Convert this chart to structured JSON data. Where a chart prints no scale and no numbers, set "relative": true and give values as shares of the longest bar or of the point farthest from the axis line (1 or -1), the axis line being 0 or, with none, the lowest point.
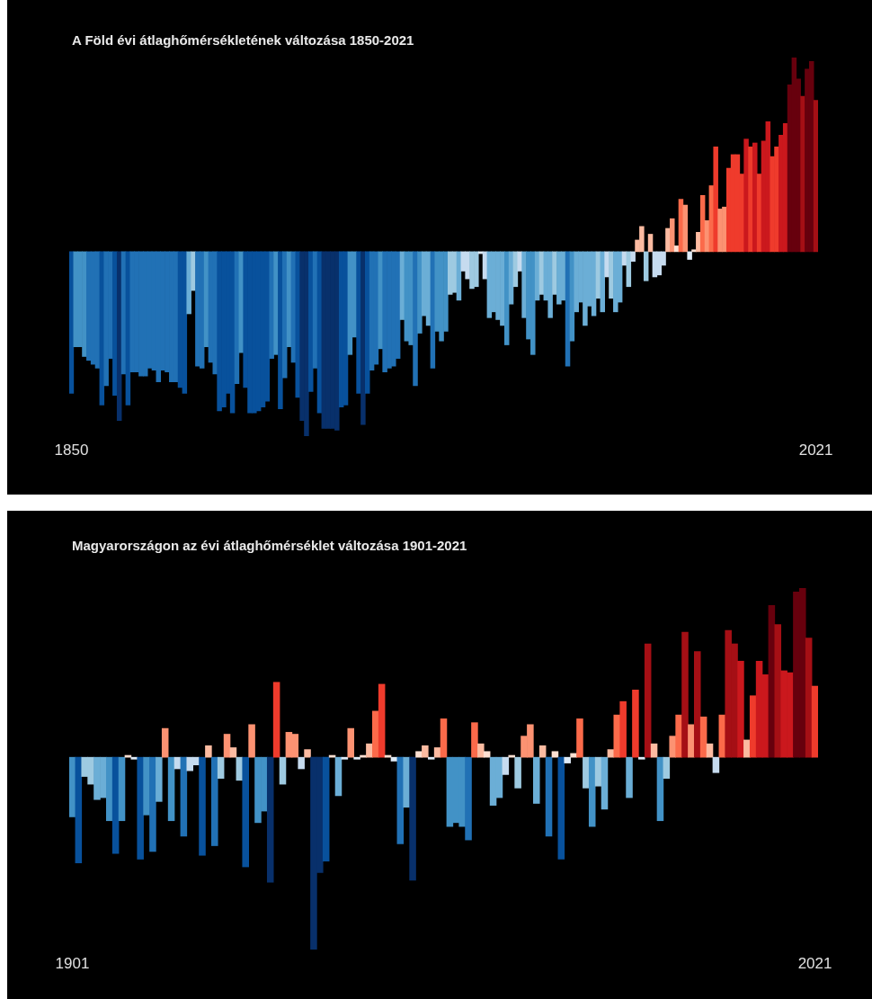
{
  "chart_data": [
    {
      "type": "bar",
      "title": "A Föld évi átlaghőmérsékletének változása 1850-2021",
      "relative": true,
      "categories": [
        "1850",
        null,
        null,
        null,
        null,
        null,
        null,
        null,
        null,
        null,
        null,
        null,
        null,
        null,
        null,
        null,
        null,
        null,
        null,
        null,
        null,
        null,
        null,
        null,
        null,
        null,
        null,
        null,
        null,
        null,
        null,
        null,
        null,
        null,
        null,
        null,
        null,
        null,
        null,
        null,
        null,
        null,
        null,
        null,
        null,
        null,
        null,
        null,
        null,
        null,
        null,
        null,
        null,
        null,
        null,
        null,
        null,
        null,
        null,
        null,
        null,
        null,
        null,
        null,
        null,
        null,
        null,
        null,
        null,
        null,
        null,
        null,
        null,
        null,
        null,
        null,
        null,
        null,
        null,
        null,
        null,
        null,
        null,
        null,
        null,
        null,
        null,
        null,
        null,
        null,
        null,
        null,
        null,
        null,
        null,
        null,
        null,
        null,
        null,
        null,
        null,
        null,
        null,
        null,
        null,
        null,
        null,
        null,
        null,
        null,
        null,
        null,
        null,
        null,
        null,
        null,
        null,
        null,
        null,
        null,
        null,
        null,
        null,
        null,
        null,
        null,
        null,
        null,
        null,
        null,
        null,
        null,
        null,
        null,
        null,
        null,
        null,
        null,
        null,
        null,
        null,
        null,
        null,
        null,
        null,
        null,
        null,
        null,
        null,
        null,
        null,
        null,
        null,
        null,
        null,
        null,
        null,
        null,
        null,
        null,
        null,
        null,
        null,
        null,
        null,
        null,
        null,
        null,
        null,
        null,
        null,
        "2021"
      ],
      "values": [
        -0.73,
        -0.49,
        -0.49,
        -0.54,
        -0.56,
        -0.58,
        -0.6,
        -0.79,
        -0.69,
        -0.55,
        -0.74,
        -0.87,
        -0.63,
        -0.79,
        -0.62,
        -0.62,
        -0.64,
        -0.64,
        -0.6,
        -0.61,
        -0.67,
        -0.61,
        -0.62,
        -0.67,
        -0.67,
        -0.7,
        -0.73,
        -0.32,
        -0.2,
        -0.59,
        -0.6,
        -0.49,
        -0.57,
        -0.63,
        -0.82,
        -0.8,
        -0.73,
        -0.83,
        -0.68,
        -0.52,
        -0.7,
        -0.83,
        -0.83,
        -0.82,
        -0.8,
        -0.77,
        -0.55,
        -0.53,
        -0.81,
        -0.65,
        -0.49,
        -0.57,
        -0.75,
        -0.87,
        -0.95,
        -0.72,
        -0.6,
        -0.83,
        -0.91,
        -0.91,
        -0.91,
        -0.92,
        -0.8,
        -0.79,
        -0.53,
        -0.44,
        -0.73,
        -0.89,
        -0.73,
        -0.61,
        -0.58,
        -0.5,
        -0.62,
        -0.6,
        -0.59,
        -0.55,
        -0.35,
        -0.46,
        -0.48,
        -0.69,
        -0.42,
        -0.33,
        -0.38,
        -0.6,
        -0.41,
        -0.46,
        -0.41,
        -0.22,
        -0.21,
        -0.25,
        -0.1,
        -0.14,
        -0.19,
        -0.18,
        -0.01,
        -0.14,
        -0.34,
        -0.31,
        -0.35,
        -0.38,
        -0.48,
        -0.27,
        -0.18,
        -0.1,
        -0.34,
        -0.45,
        -0.53,
        -0.25,
        -0.22,
        -0.25,
        -0.34,
        -0.22,
        -0.27,
        -0.25,
        -0.59,
        -0.46,
        -0.31,
        -0.26,
        -0.38,
        -0.28,
        -0.33,
        -0.24,
        -0.31,
        -0.13,
        -0.24,
        -0.31,
        -0.26,
        -0.07,
        -0.18,
        -0.05,
        0.06,
        0.13,
        -0.15,
        0.09,
        -0.13,
        -0.12,
        -0.07,
        0.12,
        0.17,
        0.03,
        0.27,
        0.24,
        -0.04,
        0.01,
        0.1,
        0.29,
        0.16,
        0.34,
        0.54,
        0.22,
        0.23,
        0.43,
        0.5,
        0.5,
        0.4,
        0.58,
        0.54,
        0.56,
        0.4,
        0.57,
        0.67,
        0.49,
        0.54,
        0.6,
        0.66,
        0.86,
        1,
        0.89,
        0.8,
        0.94,
        0.98,
        0.78
      ],
      "colors": [
        "#08519c",
        "#4292c6",
        "#4292c6",
        "#4292c6",
        "#2171b5",
        "#2171b5",
        "#2171b5",
        "#08519c",
        "#2171b5",
        "#2171b5",
        "#08519c",
        "#08306b",
        "#2171b5",
        "#08519c",
        "#2171b5",
        "#2171b5",
        "#2171b5",
        "#2171b5",
        "#2171b5",
        "#2171b5",
        "#2171b5",
        "#2171b5",
        "#2171b5",
        "#2171b5",
        "#2171b5",
        "#08519c",
        "#08519c",
        "#6baed6",
        "#9ecae1",
        "#2171b5",
        "#2171b5",
        "#4292c6",
        "#2171b5",
        "#2171b5",
        "#08519c",
        "#08519c",
        "#08519c",
        "#08519c",
        "#2171b5",
        "#4292c6",
        "#08519c",
        "#08519c",
        "#08519c",
        "#08519c",
        "#08519c",
        "#08519c",
        "#2171b5",
        "#4292c6",
        "#08519c",
        "#2171b5",
        "#4292c6",
        "#2171b5",
        "#08519c",
        "#08306b",
        "#08306b",
        "#08519c",
        "#2171b5",
        "#08519c",
        "#08306b",
        "#08306b",
        "#08306b",
        "#08306b",
        "#08519c",
        "#08519c",
        "#4292c6",
        "#4292c6",
        "#08519c",
        "#08306b",
        "#08519c",
        "#2171b5",
        "#2171b5",
        "#4292c6",
        "#2171b5",
        "#2171b5",
        "#2171b5",
        "#2171b5",
        "#6baed6",
        "#4292c6",
        "#4292c6",
        "#2171b5",
        "#4292c6",
        "#6baed6",
        "#6baed6",
        "#2171b5",
        "#4292c6",
        "#4292c6",
        "#4292c6",
        "#9ecae1",
        "#9ecae1",
        "#6baed6",
        "#c6dbef",
        "#c6dbef",
        "#9ecae1",
        "#9ecae1",
        "#deebf7",
        "#c6dbef",
        "#6baed6",
        "#6baed6",
        "#6baed6",
        "#6baed6",
        "#4292c6",
        "#6baed6",
        "#9ecae1",
        "#c6dbef",
        "#6baed6",
        "#4292c6",
        "#4292c6",
        "#6baed6",
        "#9ecae1",
        "#6baed6",
        "#6baed6",
        "#9ecae1",
        "#6baed6",
        "#6baed6",
        "#2171b5",
        "#4292c6",
        "#6baed6",
        "#6baed6",
        "#6baed6",
        "#6baed6",
        "#6baed6",
        "#9ecae1",
        "#6baed6",
        "#c6dbef",
        "#9ecae1",
        "#6baed6",
        "#6baed6",
        "#c6dbef",
        "#9ecae1",
        "#c6dbef",
        "#fcbba1",
        "#fcbba1",
        "#9ecae1",
        "#fcbba1",
        "#c6dbef",
        "#c6dbef",
        "#c6dbef",
        "#fcbba1",
        "#fc9272",
        "#fee0d2",
        "#fb6a4a",
        "#fc9272",
        "#deebf7",
        "#fee0d2",
        "#fcbba1",
        "#fb6a4a",
        "#fc9272",
        "#fb6a4a",
        "#ef3b2c",
        "#fc9272",
        "#fc9272",
        "#ef3b2c",
        "#ef3b2c",
        "#ef3b2c",
        "#ef3b2c",
        "#cb181d",
        "#ef3b2c",
        "#cb181d",
        "#ef3b2c",
        "#cb181d",
        "#cb181d",
        "#ef3b2c",
        "#ef3b2c",
        "#cb181d",
        "#cb181d",
        "#67000d",
        "#67000d",
        "#67000d",
        "#a50f15",
        "#67000d",
        "#67000d",
        "#a50f15"
      ]
    },
    {
      "type": "bar",
      "title": "Magyarországon az évi átlaghőmérséklet változása 1901-2021",
      "relative": true,
      "categories": [
        "1901",
        null,
        null,
        null,
        null,
        null,
        null,
        null,
        null,
        null,
        null,
        null,
        null,
        null,
        null,
        null,
        null,
        null,
        null,
        null,
        null,
        null,
        null,
        null,
        null,
        null,
        null,
        null,
        null,
        null,
        null,
        null,
        null,
        null,
        null,
        null,
        null,
        null,
        null,
        null,
        null,
        null,
        null,
        null,
        null,
        null,
        null,
        null,
        null,
        null,
        null,
        null,
        null,
        null,
        null,
        null,
        null,
        null,
        null,
        null,
        null,
        null,
        null,
        null,
        null,
        null,
        null,
        null,
        null,
        null,
        null,
        null,
        null,
        null,
        null,
        null,
        null,
        null,
        null,
        null,
        null,
        null,
        null,
        null,
        null,
        null,
        null,
        null,
        null,
        null,
        null,
        null,
        null,
        null,
        null,
        null,
        null,
        null,
        null,
        null,
        null,
        null,
        null,
        null,
        null,
        null,
        null,
        null,
        null,
        null,
        null,
        null,
        null,
        null,
        null,
        null,
        null,
        null,
        null,
        null,
        "2021"
      ],
      "values": [
        -0.31,
        -0.55,
        -0.1,
        -0.14,
        -0.22,
        -0.21,
        -0.33,
        -0.5,
        -0.33,
        0.01,
        -0.01,
        -0.53,
        -0.3,
        -0.49,
        -0.23,
        0.15,
        -0.33,
        -0.06,
        -0.41,
        -0.07,
        -0.04,
        -0.51,
        0.06,
        -0.46,
        -0.11,
        0.12,
        0.05,
        -0.12,
        -0.57,
        0.17,
        -0.34,
        -0.28,
        -0.65,
        0.39,
        -0.14,
        0.13,
        0.12,
        -0.06,
        0.04,
        -1,
        -0.6,
        -0.54,
        0.01,
        -0.2,
        -0.01,
        0.15,
        -0.01,
        0.01,
        0.07,
        0.24,
        0.38,
        0.01,
        -0.02,
        -0.45,
        -0.26,
        -0.64,
        0.03,
        0.06,
        -0.01,
        0.05,
        0.2,
        -0.36,
        -0.34,
        -0.36,
        -0.43,
        0.18,
        0.07,
        0.03,
        -0.25,
        -0.21,
        -0.09,
        0.01,
        -0.16,
        0.11,
        0.17,
        -0.24,
        0.06,
        -0.41,
        0.03,
        -0.53,
        -0.03,
        0.02,
        0.2,
        -0.16,
        -0.36,
        -0.15,
        -0.27,
        0.04,
        0.22,
        0.29,
        -0.21,
        0.35,
        -0.01,
        0.59,
        0.07,
        -0.33,
        -0.11,
        0.11,
        0.22,
        0.65,
        0.17,
        0.55,
        0.21,
        0.07,
        -0.08,
        0.22,
        0.66,
        0.59,
        0.5,
        0.09,
        0.32,
        0.5,
        0.43,
        0.79,
        0.69,
        0.45,
        0.44,
        0.86,
        0.88,
        0.62,
        0.37
      ],
      "colors": [
        "#4292c6",
        "#08519c",
        "#9ecae1",
        "#9ecae1",
        "#6baed6",
        "#6baed6",
        "#4292c6",
        "#08519c",
        "#4292c6",
        "#fee0d2",
        "#deebf7",
        "#08519c",
        "#4292c6",
        "#2171b5",
        "#6baed6",
        "#fc9272",
        "#4292c6",
        "#c6dbef",
        "#2171b5",
        "#c6dbef",
        "#c6dbef",
        "#08519c",
        "#fcbba1",
        "#2171b5",
        "#9ecae1",
        "#fc9272",
        "#fcbba1",
        "#9ecae1",
        "#08519c",
        "#fc9272",
        "#4292c6",
        "#4292c6",
        "#08306b",
        "#ef3b2c",
        "#9ecae1",
        "#fc9272",
        "#fc9272",
        "#c6dbef",
        "#fcbba1",
        "#08306b",
        "#08306b",
        "#08519c",
        "#fee0d2",
        "#6baed6",
        "#deebf7",
        "#fc9272",
        "#deebf7",
        "#fee0d2",
        "#fcbba1",
        "#fb6a4a",
        "#ef3b2c",
        "#fee0d2",
        "#deebf7",
        "#2171b5",
        "#6baed6",
        "#08306b",
        "#fee0d2",
        "#fcbba1",
        "#deebf7",
        "#fcbba1",
        "#fb6a4a",
        "#4292c6",
        "#4292c6",
        "#4292c6",
        "#2171b5",
        "#fb6a4a",
        "#fcbba1",
        "#fee0d2",
        "#6baed6",
        "#6baed6",
        "#c6dbef",
        "#fee0d2",
        "#9ecae1",
        "#fc9272",
        "#fc9272",
        "#6baed6",
        "#fcbba1",
        "#2171b5",
        "#fee0d2",
        "#08519c",
        "#deebf7",
        "#fee0d2",
        "#fb6a4a",
        "#9ecae1",
        "#4292c6",
        "#9ecae1",
        "#6baed6",
        "#fcbba1",
        "#fb6a4a",
        "#ef3b2c",
        "#6baed6",
        "#ef3b2c",
        "#deebf7",
        "#a50f15",
        "#fcbba1",
        "#4292c6",
        "#9ecae1",
        "#fc9272",
        "#fb6a4a",
        "#a50f15",
        "#fc9272",
        "#a50f15",
        "#fb6a4a",
        "#fcbba1",
        "#c6dbef",
        "#fb6a4a",
        "#a50f15",
        "#a50f15",
        "#cb181d",
        "#fcbba1",
        "#ef3b2c",
        "#cb181d",
        "#cb181d",
        "#67000d",
        "#a50f15",
        "#cb181d",
        "#cb181d",
        "#67000d",
        "#67000d",
        "#a50f15",
        "#ef3b2c"
      ]
    }
  ]
}
